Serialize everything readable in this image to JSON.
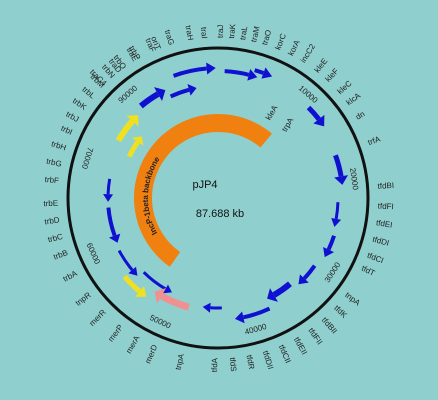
{
  "plasmid": {
    "name": "pJP4",
    "size": "87.688 kb",
    "backbone": "IncP-1beta backbone",
    "scale_labels": [
      "10000",
      "20000",
      "30000",
      "40000",
      "50000",
      "60000",
      "70000",
      "90000"
    ],
    "genes": [
      {
        "label": "traC4",
        "color": "#f2a3a3"
      },
      {
        "label": "traD",
        "color": "#222"
      },
      {
        "label": "traE",
        "color": "#222"
      },
      {
        "label": "traF",
        "color": "#222"
      },
      {
        "label": "traG",
        "color": "#222"
      },
      {
        "label": "traH",
        "color": "#222"
      },
      {
        "label": "traI",
        "color": "#222"
      },
      {
        "label": "traJ",
        "color": "#222"
      },
      {
        "label": "traK",
        "color": "#222"
      },
      {
        "label": "traL",
        "color": "#222"
      },
      {
        "label": "traM",
        "color": "#222"
      },
      {
        "label": "traO",
        "color": "#222"
      },
      {
        "label": "korC",
        "color": "#222"
      },
      {
        "label": "korA",
        "color": "#222"
      },
      {
        "label": "incC2",
        "color": "#222"
      },
      {
        "label": "kleE",
        "color": "#f2a3a3"
      },
      {
        "label": "kleF",
        "color": "#f2a3a3"
      },
      {
        "label": "kleC",
        "color": "#f2a3a3"
      },
      {
        "label": "klcA",
        "color": "#f2a3a3"
      },
      {
        "label": "dn",
        "color": "#f2a3a3"
      },
      {
        "label": "trfA",
        "color": "#222"
      },
      {
        "label": "tfdBI",
        "color": "#222"
      },
      {
        "label": "tfdFI",
        "color": "#222"
      },
      {
        "label": "tfdEI",
        "color": "#222"
      },
      {
        "label": "tfdDI",
        "color": "#222"
      },
      {
        "label": "tfdCI",
        "color": "#222"
      },
      {
        "label": "tfdT",
        "color": "#222"
      },
      {
        "label": "tnpA",
        "color": "#222"
      },
      {
        "label": "tfdK",
        "color": "#222"
      },
      {
        "label": "tfdBII",
        "color": "#222"
      },
      {
        "label": "tfdFII",
        "color": "#222"
      },
      {
        "label": "tfdEII",
        "color": "#222"
      },
      {
        "label": "tfdCII",
        "color": "#222"
      },
      {
        "label": "tfdDII",
        "color": "#222"
      },
      {
        "label": "tfdR",
        "color": "#222"
      },
      {
        "label": "tfdS",
        "color": "#222"
      },
      {
        "label": "tfdA",
        "color": "#222"
      },
      {
        "label": "tnpA",
        "color": "#e05050"
      },
      {
        "label": "merD",
        "color": "#222"
      },
      {
        "label": "merA",
        "color": "#222"
      },
      {
        "label": "merP",
        "color": "#222"
      },
      {
        "label": "merR",
        "color": "#222"
      },
      {
        "label": "tnpR",
        "color": "#f2a3a3"
      },
      {
        "label": "trbA",
        "color": "#222"
      },
      {
        "label": "trbB",
        "color": "#222"
      },
      {
        "label": "trbC",
        "color": "#222"
      },
      {
        "label": "trbD",
        "color": "#222"
      },
      {
        "label": "trbE",
        "color": "#222"
      },
      {
        "label": "trbF",
        "color": "#222"
      },
      {
        "label": "trbG",
        "color": "#222"
      },
      {
        "label": "trbH",
        "color": "#222"
      },
      {
        "label": "trbI",
        "color": "#222"
      },
      {
        "label": "trbJ",
        "color": "#222"
      },
      {
        "label": "trbK",
        "color": "#222"
      },
      {
        "label": "trbL",
        "color": "#222"
      },
      {
        "label": "trbM",
        "color": "#222"
      },
      {
        "label": "trbN",
        "color": "#222"
      },
      {
        "label": "trbO",
        "color": "#222"
      },
      {
        "label": "trbP",
        "color": "#222"
      },
      {
        "label": "oriT",
        "color": "#f2a3a3"
      }
    ],
    "inner_labels": [
      {
        "label": "kleA",
        "color": "#222"
      },
      {
        "label": "trpA",
        "color": "#f2a3a3"
      }
    ]
  }
}
